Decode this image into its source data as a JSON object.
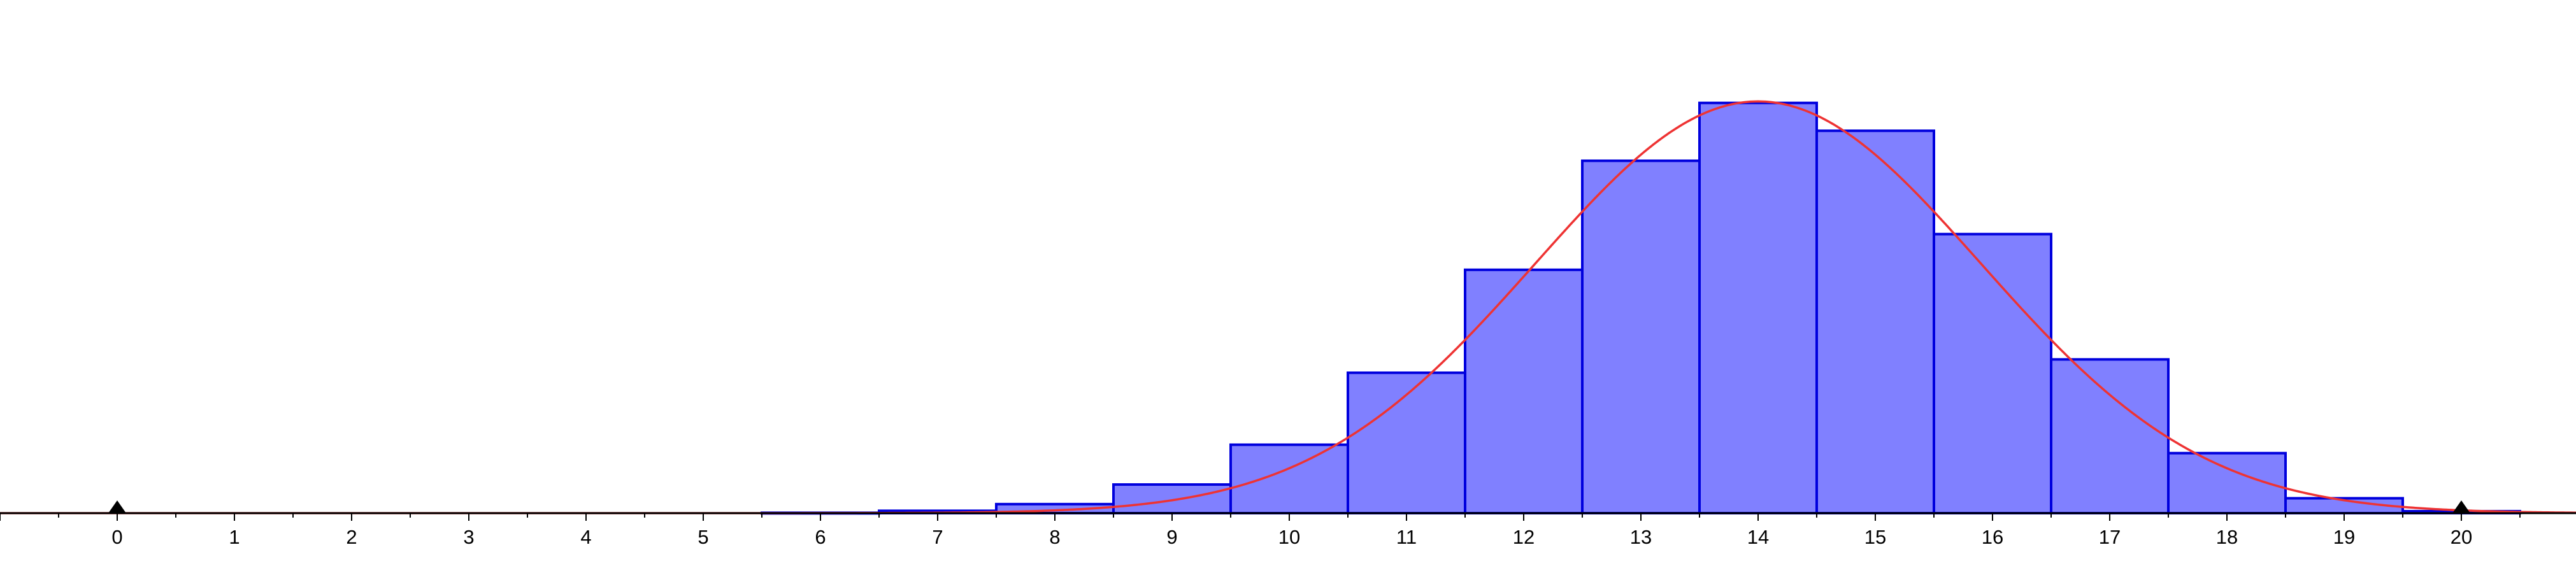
{
  "chart_data": {
    "type": "bar",
    "x": [
      0,
      1,
      2,
      3,
      4,
      5,
      6,
      7,
      8,
      9,
      10,
      11,
      12,
      13,
      14,
      15,
      16,
      17,
      18,
      19,
      20
    ],
    "values": [
      0,
      0,
      0,
      0,
      0,
      0,
      0.0002,
      0.0012,
      0.0046,
      0.0146,
      0.0349,
      0.0716,
      0.1241,
      0.1797,
      0.2092,
      0.195,
      0.1423,
      0.0784,
      0.0306,
      0.0076,
      0.001
    ],
    "tick_labels": [
      "0",
      "1",
      "2",
      "3",
      "4",
      "5",
      "6",
      "7",
      "8",
      "9",
      "10",
      "11",
      "12",
      "13",
      "14",
      "15",
      "16",
      "17",
      "18",
      "19",
      "20"
    ],
    "xlim": [
      -1,
      21
    ],
    "ylim": [
      0,
      0.25
    ],
    "curve": {
      "type": "normal",
      "mean": 14,
      "sd": 1.9
    },
    "markers": [
      0,
      20
    ],
    "grid": false,
    "colors": {
      "bar_fill": "#8080ff",
      "bar_stroke": "#0000dd",
      "curve": "#ee3333",
      "axis": "#000000",
      "marker": "#000000"
    }
  }
}
